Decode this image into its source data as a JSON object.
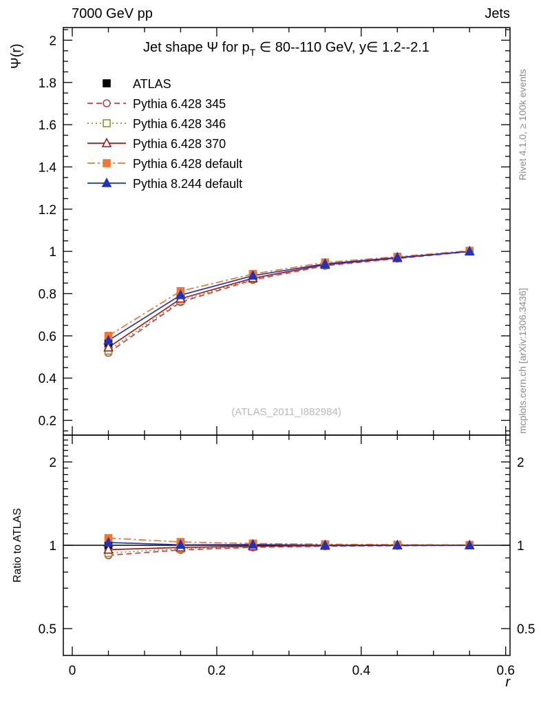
{
  "header": {
    "left": "7000 GeV pp",
    "right": "Jets"
  },
  "side_notes": {
    "top_right": "Rivet 4.1.0, ≥ 100k events",
    "bottom_right": "mcplots.cern.ch [arXiv:1306.3436]"
  },
  "watermark": "(ATLAS_2011_I882984)",
  "chart_data": {
    "type": "line",
    "title_pre": "Jet shape Ψ for p",
    "title_sub": "T",
    "title_post": " ∈ 80--110 GeV, y∈ 1.2--2.1",
    "xlabel": "r",
    "ylabel_main": "Ψ(r)",
    "ylabel_ratio": "Ratio to ATLAS",
    "legend_position": "top-left",
    "grid": false,
    "x": [
      0.05,
      0.15,
      0.25,
      0.35,
      0.45,
      0.55
    ],
    "xlim": [
      -0.0124,
      0.606
    ],
    "ylim_main": [
      0.13,
      2.06
    ],
    "ylim_ratio": [
      0.4,
      2.5
    ],
    "ratio_log_scale": true,
    "x_major_ticks": [
      0,
      0.2,
      0.4,
      0.6
    ],
    "x_major_labels": [
      "0",
      "0.2",
      "0.4",
      "0.6"
    ],
    "x_minor_step": 0.05,
    "y_main_labels": [
      "0.2",
      "0.4",
      "0.6",
      "0.8",
      "1",
      "1.2",
      "1.4",
      "1.6",
      "1.8",
      "2"
    ],
    "y_ratio_major": [
      2,
      1,
      0.5
    ],
    "y_ratio_labels": [
      "2",
      "1",
      "0.5"
    ],
    "y_ratio_minor": [
      0.6,
      0.7,
      0.8,
      0.9,
      1.1,
      1.2,
      1.3,
      1.4,
      1.5,
      1.6,
      1.7,
      1.8,
      1.9,
      2.1,
      2.2,
      2.3,
      2.4
    ],
    "series": [
      {
        "name": "ATLAS",
        "color": "#000000",
        "line": "none",
        "marker": "square",
        "filled": true,
        "values": [
          0.565,
          0.79,
          0.88,
          0.94,
          0.97,
          1.0
        ],
        "err": [
          0.012,
          0.01,
          0.008,
          0.006,
          0.004,
          0.003
        ],
        "ratio": [
          1.0,
          1.0,
          1.0,
          1.0,
          1.0,
          1.0
        ],
        "ratio_err": [
          0.021,
          0.013,
          0.009,
          0.006,
          0.005,
          0.003
        ]
      },
      {
        "name": "Pythia 6.428 345",
        "color": "#c04040",
        "line": "dashed",
        "marker": "circle",
        "filled": false,
        "values": [
          0.52,
          0.76,
          0.865,
          0.932,
          0.966,
          0.999
        ],
        "err": [
          0.005,
          0.004,
          0.003,
          0.003,
          0.002,
          0.002
        ],
        "ratio": [
          0.92,
          0.962,
          0.983,
          0.992,
          0.996,
          0.999
        ],
        "ratio_err": [
          0.012,
          0.008,
          0.006,
          0.004,
          0.003,
          0.002
        ]
      },
      {
        "name": "Pythia 6.428 346",
        "color": "#948b32",
        "line": "dotted",
        "marker": "square",
        "filled": false,
        "values": [
          0.53,
          0.767,
          0.87,
          0.935,
          0.968,
          1.0
        ],
        "err": [
          0.005,
          0.004,
          0.003,
          0.003,
          0.002,
          0.002
        ],
        "ratio": [
          0.938,
          0.971,
          0.989,
          0.995,
          0.998,
          1.0
        ],
        "ratio_err": [
          0.012,
          0.008,
          0.006,
          0.004,
          0.003,
          0.002
        ]
      },
      {
        "name": "Pythia 6.428 370",
        "color": "#a01818",
        "line": "solid",
        "marker": "triangle",
        "filled": false,
        "values": [
          0.545,
          0.776,
          0.873,
          0.937,
          0.969,
          1.0
        ],
        "err": [
          0.005,
          0.004,
          0.003,
          0.003,
          0.002,
          0.002
        ],
        "ratio": [
          0.964,
          0.982,
          0.992,
          0.997,
          0.999,
          1.0
        ],
        "ratio_err": [
          0.012,
          0.008,
          0.006,
          0.004,
          0.003,
          0.002
        ]
      },
      {
        "name": "Pythia 6.428 default",
        "color": "#ee7733",
        "line": "dashdot",
        "marker": "square",
        "filled": true,
        "values": [
          0.6,
          0.812,
          0.893,
          0.948,
          0.975,
          1.003
        ],
        "err": [
          0.005,
          0.004,
          0.003,
          0.003,
          0.002,
          0.002
        ],
        "ratio": [
          1.062,
          1.028,
          1.015,
          1.009,
          1.005,
          1.003
        ],
        "ratio_err": [
          0.01,
          0.007,
          0.005,
          0.004,
          0.003,
          0.002
        ]
      },
      {
        "name": "Pythia 8.244 default",
        "color": "#2233bb",
        "line": "solid",
        "marker": "triangle",
        "filled": true,
        "values": [
          0.578,
          0.793,
          0.885,
          0.941,
          0.971,
          1.0
        ],
        "err": [
          0.005,
          0.004,
          0.003,
          0.003,
          0.002,
          0.002
        ],
        "ratio": [
          1.023,
          1.004,
          1.006,
          1.001,
          1.001,
          1.0
        ],
        "ratio_err": [
          0.01,
          0.007,
          0.005,
          0.004,
          0.003,
          0.002
        ]
      }
    ]
  }
}
